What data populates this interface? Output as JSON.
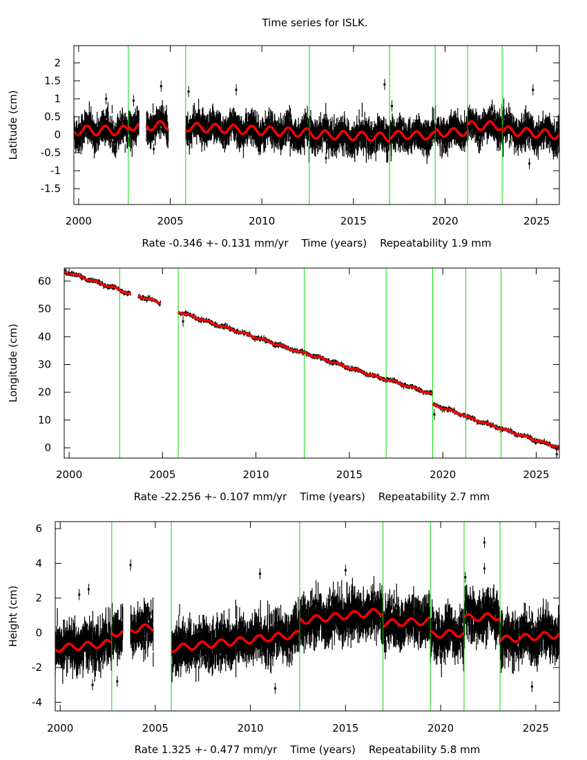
{
  "chart_data": {
    "title": "Time series for ISLK.",
    "type": "scatter",
    "x_range": [
      1999.74,
      2026.24
    ],
    "x_ticks": [
      2000,
      2005,
      2010,
      2015,
      2020,
      2025
    ],
    "x_tick_labels": [
      "2000",
      "2005",
      "2010",
      "2015",
      "2020",
      "2025"
    ],
    "colors": {
      "data": "#000000",
      "model": "#ff0000",
      "breaks": "#00dd00"
    },
    "panels": [
      {
        "name": "latitude",
        "ylabel": "Latitude (cm)",
        "xlabel": "Rate -0.346 +- 0.131 mm/yr    Time (years)    Repeatability 1.9 mm",
        "ylim": [
          -1.94,
          2.48
        ],
        "y_ticks": [
          -1.5,
          -1,
          -0.5,
          0,
          0.5,
          1,
          1.5,
          2
        ],
        "y_tick_labels": [
          "-1.5",
          "-1",
          "-0.5",
          "0",
          "0.5",
          "1",
          "1.5",
          "2"
        ],
        "breaks": [
          2002.71,
          2005.84,
          2012.59,
          2016.97,
          2019.46,
          2021.23,
          2023.12
        ],
        "data_gaps": [
          [
            2003.3,
            2003.7
          ],
          [
            2004.9,
            2005.8
          ]
        ],
        "model_segments": [
          {
            "start": 1999.74,
            "end": 2002.71,
            "offset": 0.12,
            "trend": 0.0,
            "amp": 0.13
          },
          {
            "start": 2002.71,
            "end": 2003.3,
            "offset": 0.25,
            "trend": 0.0,
            "amp": 0.13
          },
          {
            "start": 2003.7,
            "end": 2004.9,
            "offset": 0.25,
            "trend": 0.0,
            "amp": 0.13
          },
          {
            "start": 2005.84,
            "end": 2012.59,
            "offset": 0.22,
            "trend": -0.025,
            "amp": 0.12
          },
          {
            "start": 2012.59,
            "end": 2016.97,
            "offset": 0.02,
            "trend": -0.02,
            "amp": 0.12
          },
          {
            "start": 2016.97,
            "end": 2019.46,
            "offset": 0.0,
            "trend": -0.01,
            "amp": 0.11
          },
          {
            "start": 2019.46,
            "end": 2021.23,
            "offset": 0.05,
            "trend": 0.02,
            "amp": 0.11
          },
          {
            "start": 2021.23,
            "end": 2023.12,
            "offset": 0.25,
            "trend": 0.0,
            "amp": 0.12
          },
          {
            "start": 2023.12,
            "end": 2026.24,
            "offset": 0.12,
            "trend": -0.04,
            "amp": 0.12
          }
        ],
        "noise_sd": 0.18,
        "outliers": [
          [
            2001.5,
            1.0
          ],
          [
            2003.0,
            0.95
          ],
          [
            2004.5,
            1.35
          ],
          [
            2006.0,
            1.2
          ],
          [
            2008.6,
            1.25
          ],
          [
            2016.7,
            1.4
          ],
          [
            2017.1,
            0.8
          ],
          [
            2024.6,
            -0.8
          ],
          [
            2024.8,
            1.25
          ],
          [
            2004.1,
            -0.4
          ],
          [
            2013.5,
            -0.65
          ]
        ],
        "rate_mm_yr": -0.346,
        "rate_err_mm_yr": 0.131,
        "repeatability_mm": 1.9
      },
      {
        "name": "longitude",
        "ylabel": "Longitude (cm)",
        "xlabel": "Rate -22.256 +- 0.107 mm/yr    Time (years)    Repeatability 2.7 mm",
        "ylim": [
          -3.7,
          64.7
        ],
        "y_ticks": [
          0,
          10,
          20,
          30,
          40,
          50,
          60
        ],
        "y_tick_labels": [
          "0",
          "10",
          "20",
          "30",
          "40",
          "50",
          "60"
        ],
        "breaks": [
          2002.71,
          2005.84,
          2012.59,
          2016.97,
          2019.46,
          2021.23,
          2023.12
        ],
        "data_gaps": [
          [
            2003.3,
            2003.7
          ],
          [
            2004.9,
            2005.8
          ]
        ],
        "model_segments": [
          {
            "start": 1999.74,
            "end": 2002.71,
            "offset": 63.5,
            "trend": -2.23,
            "amp": 0.3
          },
          {
            "start": 2002.71,
            "end": 2003.3,
            "offset": 56.7,
            "trend": -2.23,
            "amp": 0.3
          },
          {
            "start": 2003.7,
            "end": 2004.9,
            "offset": 54.8,
            "trend": -2.23,
            "amp": 0.3
          },
          {
            "start": 2005.84,
            "end": 2012.59,
            "offset": 49.0,
            "trend": -2.23,
            "amp": 0.3
          },
          {
            "start": 2012.59,
            "end": 2016.97,
            "offset": 34.2,
            "trend": -2.23,
            "amp": 0.3
          },
          {
            "start": 2016.97,
            "end": 2019.46,
            "offset": 24.8,
            "trend": -2.23,
            "amp": 0.3
          },
          {
            "start": 2019.46,
            "end": 2021.23,
            "offset": 15.5,
            "trend": -2.23,
            "amp": 0.3
          },
          {
            "start": 2021.23,
            "end": 2023.12,
            "offset": 11.2,
            "trend": -2.23,
            "amp": 0.3
          },
          {
            "start": 2023.12,
            "end": 2026.24,
            "offset": 6.9,
            "trend": -2.23,
            "amp": 0.3
          }
        ],
        "noise_sd": 0.35,
        "outliers": [
          [
            2019.55,
            12.0
          ],
          [
            2026.1,
            -2.3
          ],
          [
            2006.1,
            45.5
          ]
        ],
        "rate_mm_yr": -22.256,
        "rate_err_mm_yr": 0.107,
        "repeatability_mm": 2.7
      },
      {
        "name": "height",
        "ylabel": "Height (cm)",
        "xlabel": "Rate 1.325 +- 0.477 mm/yr    Time (years)    Repeatability 5.8 mm",
        "ylim": [
          -4.5,
          6.4
        ],
        "y_ticks": [
          -4,
          -2,
          0,
          2,
          4,
          6
        ],
        "y_tick_labels": [
          "-4",
          "-2",
          "0",
          "2",
          "4",
          "6"
        ],
        "breaks": [
          2002.71,
          2005.84,
          2012.59,
          2016.97,
          2019.46,
          2021.23,
          2023.12
        ],
        "data_gaps": [
          [
            2003.3,
            2003.7
          ],
          [
            2004.9,
            2005.8
          ]
        ],
        "model_segments": [
          {
            "start": 1999.74,
            "end": 2002.71,
            "offset": -0.9,
            "trend": 0.1,
            "amp": 0.2
          },
          {
            "start": 2002.71,
            "end": 2003.3,
            "offset": 0.0,
            "trend": 0.0,
            "amp": 0.2
          },
          {
            "start": 2003.7,
            "end": 2004.9,
            "offset": 0.2,
            "trend": 0.1,
            "amp": 0.2
          },
          {
            "start": 2005.84,
            "end": 2012.59,
            "offset": -0.9,
            "trend": 0.12,
            "amp": 0.2
          },
          {
            "start": 2012.59,
            "end": 2016.97,
            "offset": 0.7,
            "trend": 0.12,
            "amp": 0.2
          },
          {
            "start": 2016.97,
            "end": 2019.46,
            "offset": 0.55,
            "trend": 0.05,
            "amp": 0.2
          },
          {
            "start": 2019.46,
            "end": 2021.23,
            "offset": -0.1,
            "trend": 0.05,
            "amp": 0.2
          },
          {
            "start": 2021.23,
            "end": 2023.12,
            "offset": 0.85,
            "trend": 0.05,
            "amp": 0.2
          },
          {
            "start": 2023.12,
            "end": 2026.24,
            "offset": -0.4,
            "trend": 0.1,
            "amp": 0.2
          }
        ],
        "noise_sd": 0.55,
        "outliers": [
          [
            2001.0,
            2.2
          ],
          [
            2001.5,
            2.5
          ],
          [
            2003.7,
            3.9
          ],
          [
            2003.0,
            -2.8
          ],
          [
            2010.5,
            3.4
          ],
          [
            2011.3,
            -3.2
          ],
          [
            2015.0,
            3.6
          ],
          [
            2021.3,
            3.2
          ],
          [
            2022.3,
            5.2
          ],
          [
            2022.3,
            3.7
          ],
          [
            2024.8,
            -3.1
          ],
          [
            2001.7,
            -3.0
          ]
        ],
        "rate_mm_yr": 1.325,
        "rate_err_mm_yr": 0.477,
        "repeatability_mm": 5.8
      }
    ]
  }
}
